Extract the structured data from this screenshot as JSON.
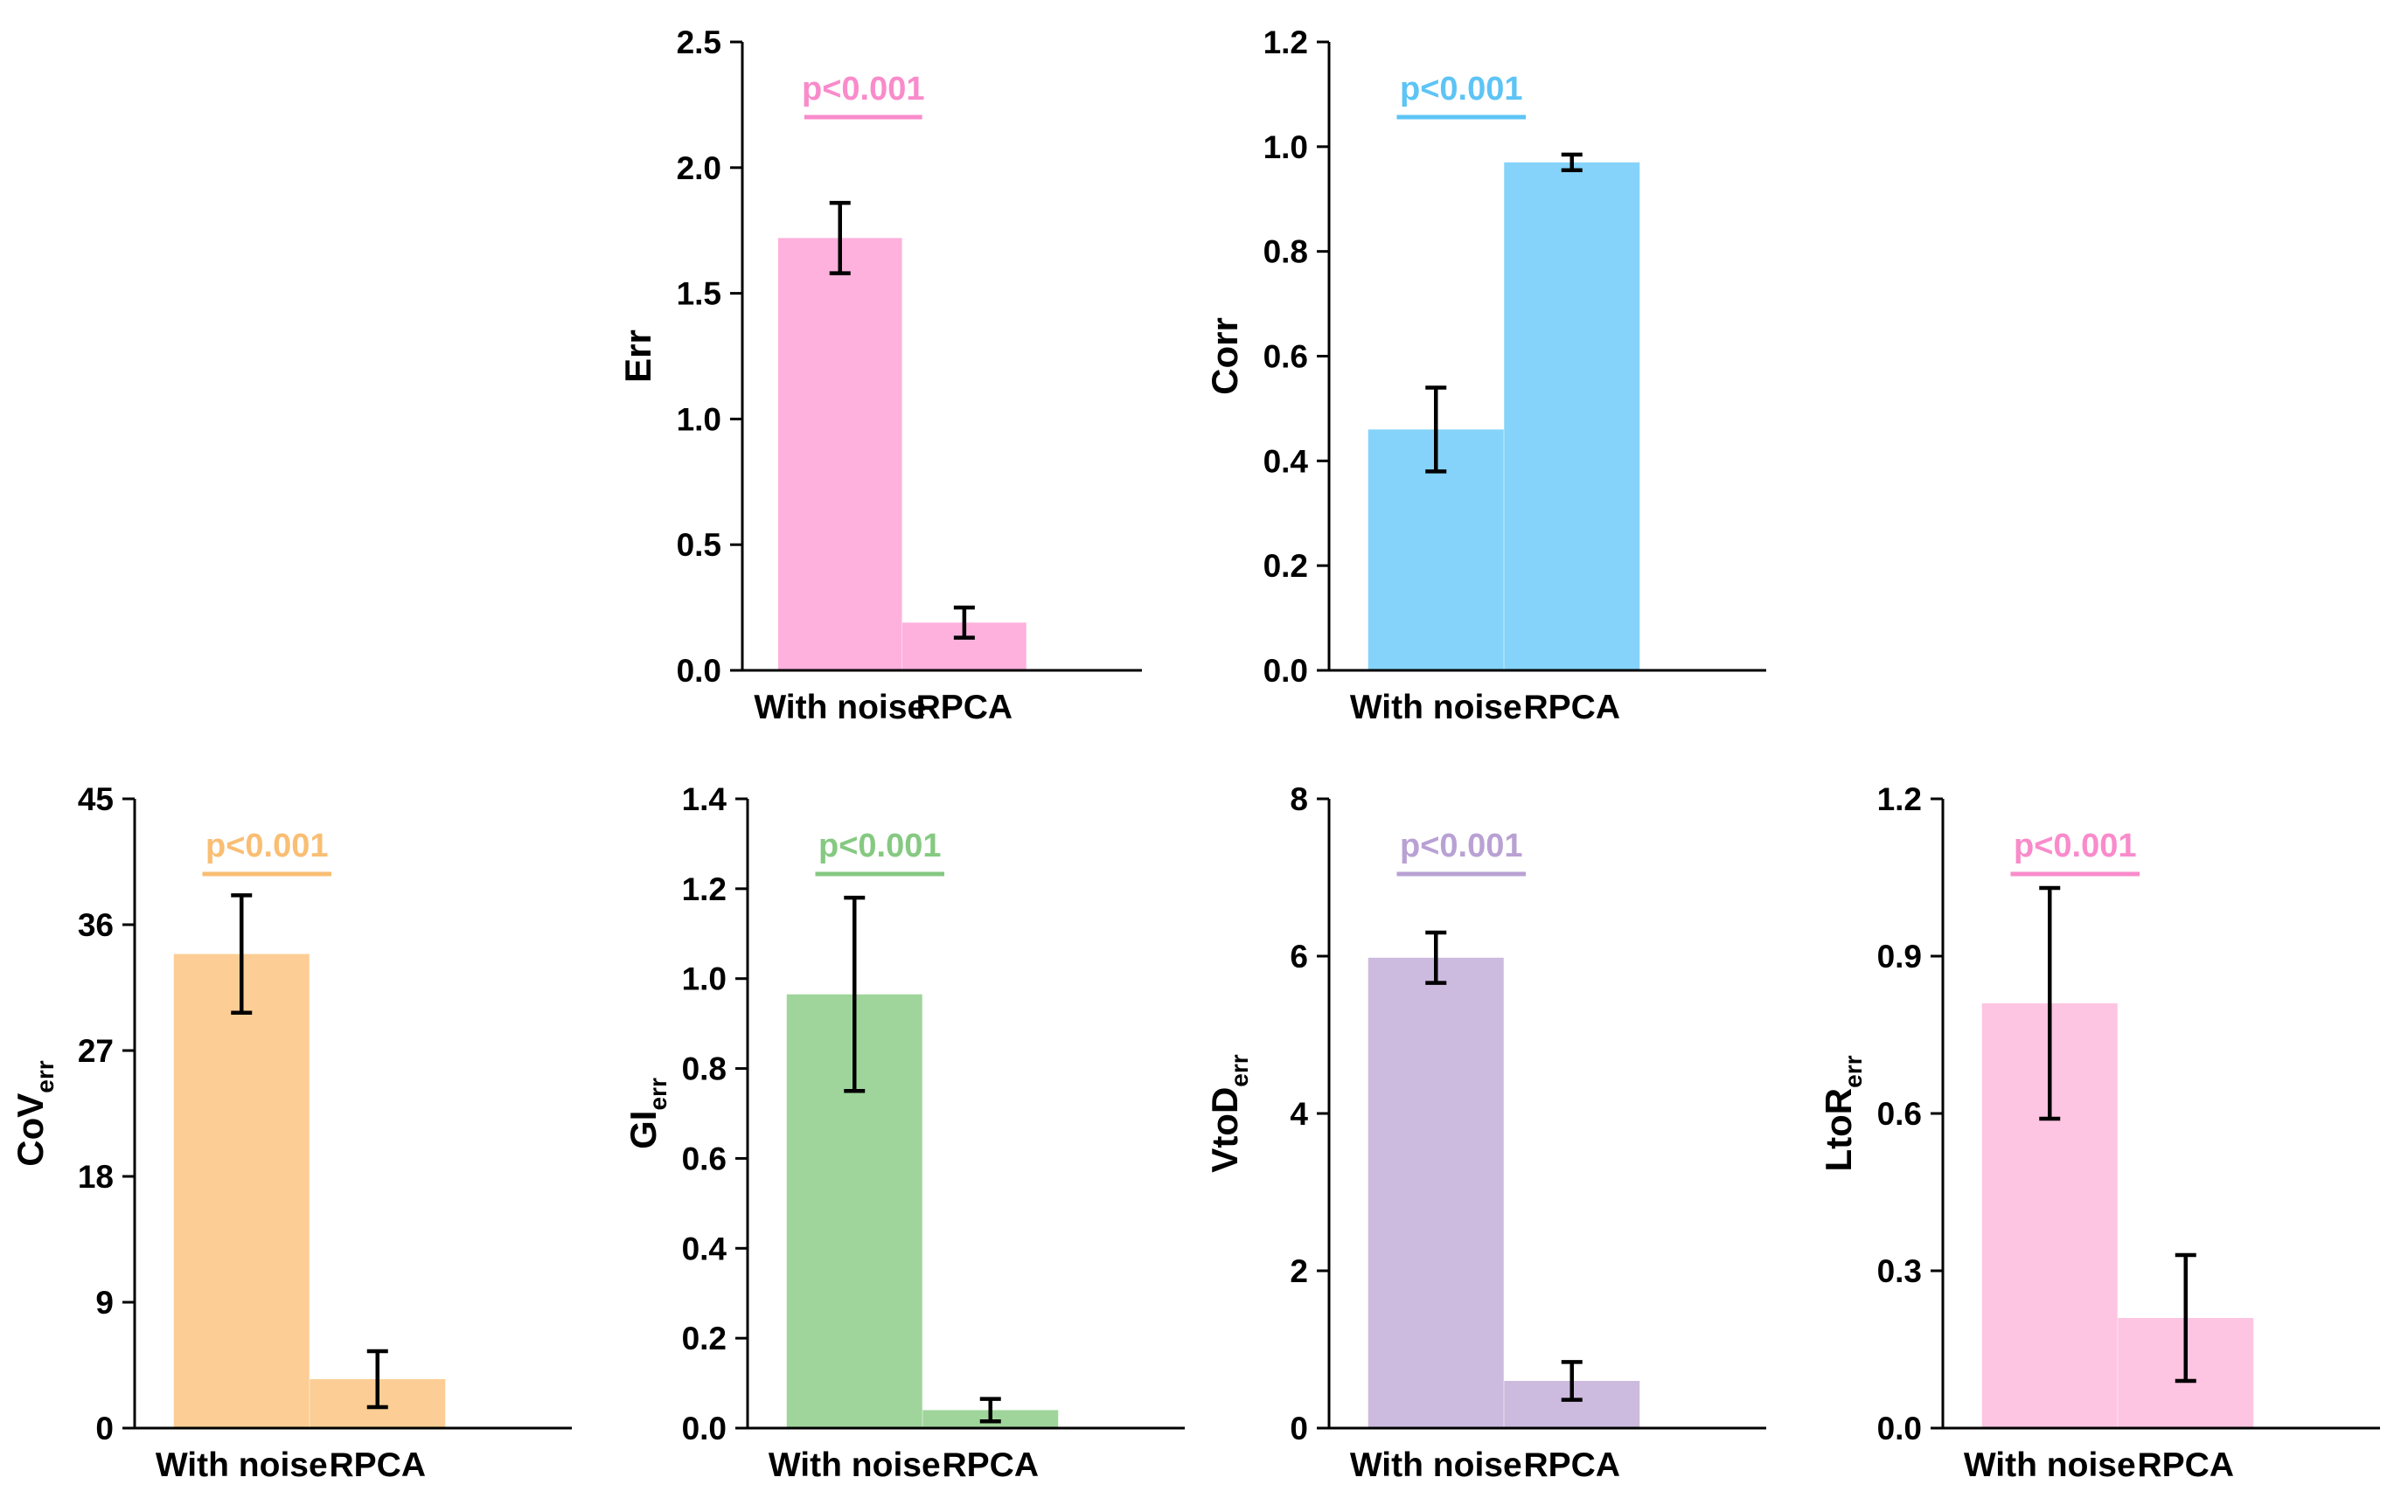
{
  "chart_data": [
    {
      "type": "bar",
      "ylabel": "Err",
      "ylabel_sub": "",
      "categories": [
        "With noise",
        "RPCA"
      ],
      "values": [
        1.72,
        0.19
      ],
      "errors": [
        0.14,
        0.06
      ],
      "ylim": [
        0,
        2.5
      ],
      "yticks": [
        0,
        0.5,
        1.0,
        1.5,
        2.0,
        2.5
      ],
      "ytick_labels": [
        "0.0",
        "0.5",
        "1.0",
        "1.5",
        "2.0",
        "2.5"
      ],
      "significance": "p<0.001",
      "color": "#FDB1DC",
      "sig_color": "#F98BCB"
    },
    {
      "type": "bar",
      "ylabel": "Corr",
      "ylabel_sub": "",
      "categories": [
        "With noise",
        "RPCA"
      ],
      "values": [
        0.46,
        0.97
      ],
      "errors": [
        0.08,
        0.015
      ],
      "ylim": [
        0,
        1.2
      ],
      "yticks": [
        0,
        0.2,
        0.4,
        0.6,
        0.8,
        1.0,
        1.2
      ],
      "ytick_labels": [
        "0.0",
        "0.2",
        "0.4",
        "0.6",
        "0.8",
        "1.0",
        "1.2"
      ],
      "significance": "p<0.001",
      "color": "#85D3FA",
      "sig_color": "#5DC4F5"
    },
    {
      "type": "bar",
      "ylabel": "CoV",
      "ylabel_sub": "err",
      "categories": [
        "With noise",
        "RPCA"
      ],
      "values": [
        33.9,
        3.5
      ],
      "errors": [
        4.2,
        2.0
      ],
      "ylim": [
        0,
        45
      ],
      "yticks": [
        0,
        9,
        18,
        27,
        36,
        45
      ],
      "ytick_labels": [
        "0",
        "9",
        "18",
        "27",
        "36",
        "45"
      ],
      "significance": "p<0.001",
      "color": "#FCCD94",
      "sig_color": "#F9BE74"
    },
    {
      "type": "bar",
      "ylabel": "GI",
      "ylabel_sub": "err",
      "categories": [
        "With noise",
        "RPCA"
      ],
      "values": [
        0.965,
        0.04
      ],
      "errors": [
        0.215,
        0.025
      ],
      "ylim": [
        0,
        1.4
      ],
      "yticks": [
        0,
        0.2,
        0.4,
        0.6,
        0.8,
        1.0,
        1.2,
        1.4
      ],
      "ytick_labels": [
        "0.0",
        "0.2",
        "0.4",
        "0.6",
        "0.8",
        "1.0",
        "1.2",
        "1.4"
      ],
      "significance": "p<0.001",
      "color": "#9FD59B",
      "sig_color": "#86C982"
    },
    {
      "type": "bar",
      "ylabel": "VtoD",
      "ylabel_sub": "err",
      "categories": [
        "With noise",
        "RPCA"
      ],
      "values": [
        5.98,
        0.6
      ],
      "errors": [
        0.32,
        0.24
      ],
      "ylim": [
        0,
        8
      ],
      "yticks": [
        0,
        2,
        4,
        6,
        8
      ],
      "ytick_labels": [
        "0",
        "2",
        "4",
        "6",
        "8"
      ],
      "significance": "p<0.001",
      "color": "#CDBADF",
      "sig_color": "#B9A1D4"
    },
    {
      "type": "bar",
      "ylabel": "LtoR",
      "ylabel_sub": "err",
      "categories": [
        "With noise",
        "RPCA"
      ],
      "values": [
        0.81,
        0.21
      ],
      "errors": [
        0.22,
        0.12
      ],
      "ylim": [
        0,
        1.2
      ],
      "yticks": [
        0,
        0.3,
        0.6,
        0.9,
        1.2
      ],
      "ytick_labels": [
        "0.0",
        "0.3",
        "0.6",
        "0.9",
        "1.2"
      ],
      "significance": "p<0.001",
      "color": "#FDC5E2",
      "sig_color": "#F98BCB"
    }
  ]
}
